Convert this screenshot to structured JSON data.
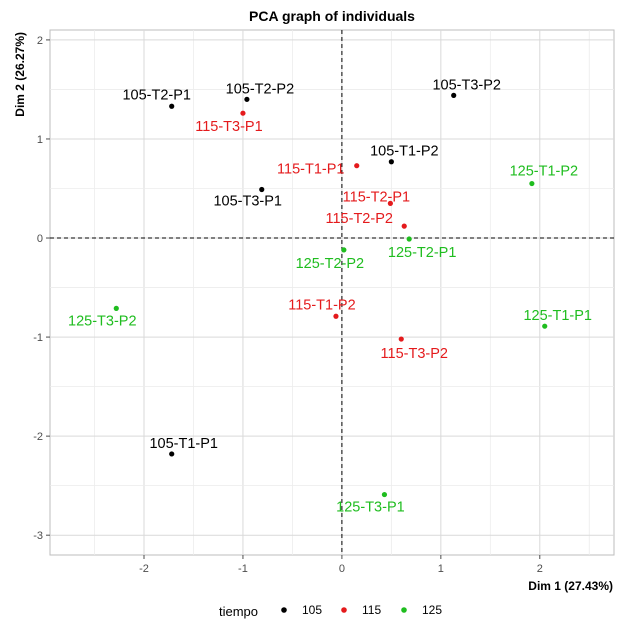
{
  "chart_data": {
    "type": "scatter",
    "title": "PCA graph of individuals",
    "xlabel": "Dim 1 (27.43%)",
    "ylabel": "Dim 2 (26.27%)",
    "xlim": [
      -2.95,
      2.75
    ],
    "ylim": [
      -3.2,
      2.1
    ],
    "xticks": [
      -2,
      -1,
      0,
      1,
      2
    ],
    "yticks": [
      -3,
      -2,
      -1,
      0,
      1,
      2
    ],
    "grid": true,
    "reference_lines": {
      "x": 0,
      "y": 0,
      "style": "dashed"
    },
    "legend": {
      "title": "tiempo",
      "placement": "bottom",
      "entries": [
        {
          "name": "105",
          "color": "#000000"
        },
        {
          "name": "115",
          "color": "#e41a1c"
        },
        {
          "name": "125",
          "color": "#1fbd1f"
        }
      ]
    },
    "series": [
      {
        "name": "105",
        "color": "#000000",
        "points": [
          {
            "label": "105-T2-P1",
            "x": -1.72,
            "y": 1.33
          },
          {
            "label": "105-T2-P2",
            "x": -0.96,
            "y": 1.4
          },
          {
            "label": "105-T3-P2",
            "x": 1.13,
            "y": 1.44
          },
          {
            "label": "105-T1-P2",
            "x": 0.5,
            "y": 0.77
          },
          {
            "label": "105-T3-P1",
            "x": -0.81,
            "y": 0.49
          },
          {
            "label": "105-T1-P1",
            "x": -1.72,
            "y": -2.18
          }
        ]
      },
      {
        "name": "115",
        "color": "#e41a1c",
        "points": [
          {
            "label": "115-T3-P1",
            "x": -1.0,
            "y": 1.26
          },
          {
            "label": "115-T1-P1",
            "x": 0.15,
            "y": 0.73
          },
          {
            "label": "115-T2-P1",
            "x": 0.49,
            "y": 0.35
          },
          {
            "label": "115-T2-P2",
            "x": 0.63,
            "y": 0.12
          },
          {
            "label": "115-T1-P2",
            "x": -0.06,
            "y": -0.79
          },
          {
            "label": "115-T3-P2",
            "x": 0.6,
            "y": -1.02
          }
        ]
      },
      {
        "name": "125",
        "color": "#1fbd1f",
        "points": [
          {
            "label": "125-T1-P2",
            "x": 1.92,
            "y": 0.55
          },
          {
            "label": "125-T2-P1",
            "x": 0.68,
            "y": -0.01
          },
          {
            "label": "125-T2-P2",
            "x": 0.02,
            "y": -0.12
          },
          {
            "label": "125-T3-P2",
            "x": -2.28,
            "y": -0.71
          },
          {
            "label": "125-T1-P1",
            "x": 2.05,
            "y": -0.89
          },
          {
            "label": "125-T3-P1",
            "x": 0.43,
            "y": -2.59
          }
        ]
      }
    ]
  }
}
